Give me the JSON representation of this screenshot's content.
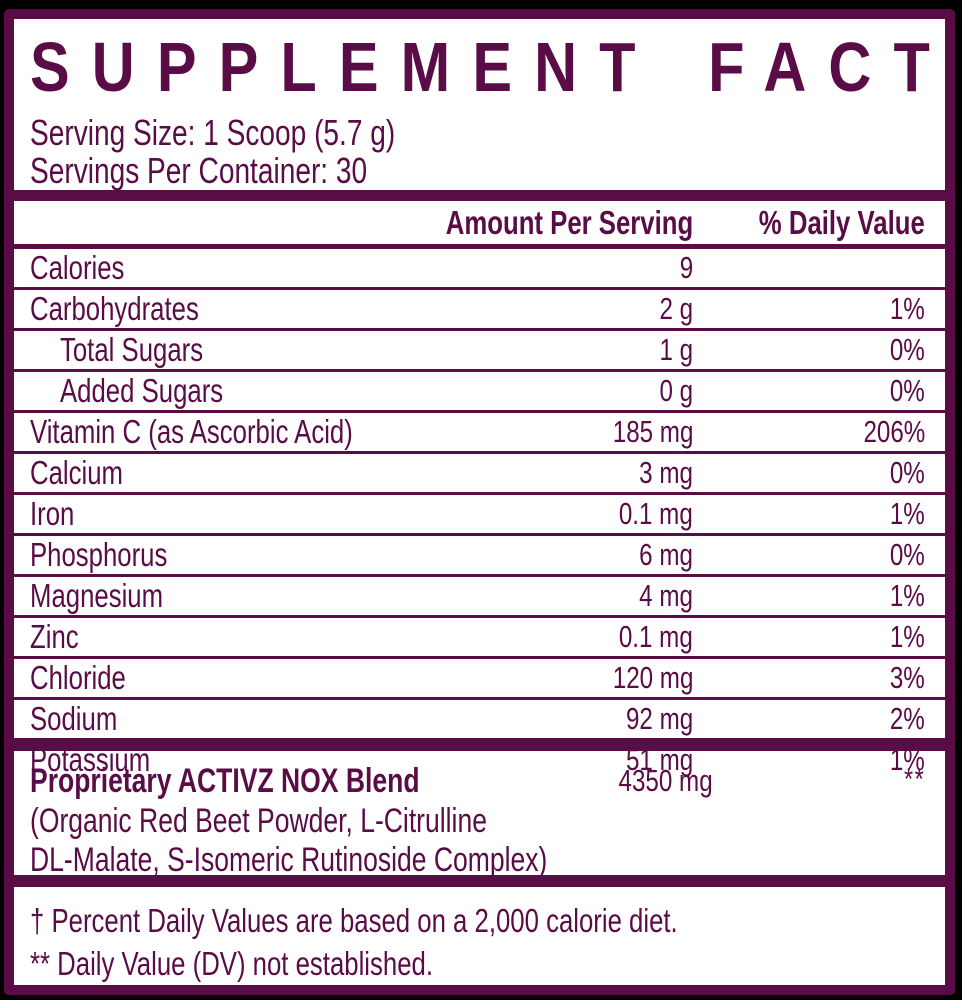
{
  "colors": {
    "brand": "#5A0C46",
    "panel": "#FFFFFF",
    "page": "#000000"
  },
  "title": "SUPPLEMENT FACTS",
  "serving": {
    "serving_size": "Serving Size: 1 Scoop (5.7 g)",
    "servings_per_container": "Servings Per Container: 30"
  },
  "table": {
    "headers": {
      "amount": "Amount Per Serving",
      "dv": "% Daily Value"
    },
    "rows": [
      {
        "name": "Calories",
        "amount": "9",
        "dv": "",
        "indent": false
      },
      {
        "name": "Carbohydrates",
        "amount": "2 g",
        "dv": "1%",
        "indent": false
      },
      {
        "name": "Total Sugars",
        "amount": "1 g",
        "dv": "0%",
        "indent": true
      },
      {
        "name": "Added Sugars",
        "amount": "0 g",
        "dv": "0%",
        "indent": true
      },
      {
        "name": "Vitamin C (as Ascorbic Acid)",
        "amount": "185 mg",
        "dv": "206%",
        "indent": false
      },
      {
        "name": "Calcium",
        "amount": "3 mg",
        "dv": "0%",
        "indent": false
      },
      {
        "name": "Iron",
        "amount": "0.1 mg",
        "dv": "1%",
        "indent": false
      },
      {
        "name": "Phosphorus",
        "amount": "6 mg",
        "dv": "0%",
        "indent": false
      },
      {
        "name": "Magnesium",
        "amount": "4 mg",
        "dv": "1%",
        "indent": false
      },
      {
        "name": "Zinc",
        "amount": "0.1 mg",
        "dv": "1%",
        "indent": false
      },
      {
        "name": "Chloride",
        "amount": "120 mg",
        "dv": "3%",
        "indent": false
      },
      {
        "name": "Sodium",
        "amount": "92 mg",
        "dv": "2%",
        "indent": false
      },
      {
        "name": "Potassium",
        "amount": "51 mg",
        "dv": "1%",
        "indent": false
      }
    ]
  },
  "blend": {
    "name": "Proprietary ACTIVZ NOX Blend",
    "amount": "4350 mg",
    "dv": "**",
    "description_lines": [
      "(Organic Red Beet Powder, L-Citrulline",
      "DL-Malate, S-Isomeric Rutinoside Complex)"
    ]
  },
  "footnotes": [
    "† Percent Daily Values are based on a 2,000 calorie diet.",
    "** Daily Value (DV) not established."
  ]
}
